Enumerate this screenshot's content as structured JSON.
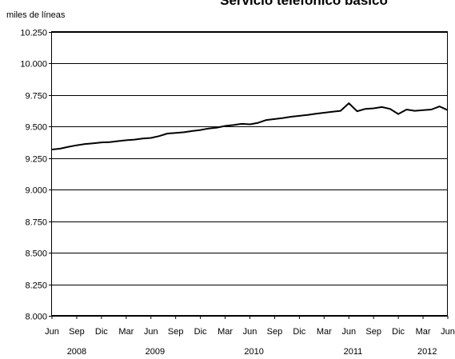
{
  "chart_data": {
    "type": "line",
    "title": "Servicio telefónico básico",
    "ylabel": "miles de líneas",
    "xlabel": "",
    "ylim": [
      8000,
      10250
    ],
    "yticks": [
      8000,
      8250,
      8500,
      8750,
      9000,
      9250,
      9500,
      9750,
      10000,
      10250
    ],
    "ytick_labels": [
      "8.000",
      "8.250",
      "8.500",
      "8.750",
      "9.000",
      "9.250",
      "9.500",
      "9.750",
      "10.000",
      "10.250"
    ],
    "xtick_labels": [
      "Jun",
      "Sep",
      "Dic",
      "Mar",
      "Jun",
      "Sep",
      "Dic",
      "Mar",
      "Jun",
      "Sep",
      "Dic",
      "Mar",
      "Jun",
      "Sep",
      "Dic",
      "Mar",
      "Jun"
    ],
    "year_labels": [
      "2008",
      "2009",
      "2010",
      "2011",
      "2012"
    ],
    "grid": true,
    "legend": "none",
    "series": [
      {
        "x_start": "2008-06",
        "frequency": "monthly",
        "values": [
          9318,
          9325,
          9340,
          9352,
          9362,
          9368,
          9375,
          9377,
          9385,
          9392,
          9397,
          9405,
          9410,
          9425,
          9445,
          9450,
          9455,
          9465,
          9473,
          9485,
          9492,
          9505,
          9512,
          9522,
          9518,
          9530,
          9552,
          9560,
          9568,
          9578,
          9585,
          9593,
          9602,
          9610,
          9618,
          9625,
          9685,
          9622,
          9640,
          9645,
          9655,
          9640,
          9600,
          9635,
          9625,
          9630,
          9635,
          9660,
          9630
        ]
      }
    ]
  }
}
